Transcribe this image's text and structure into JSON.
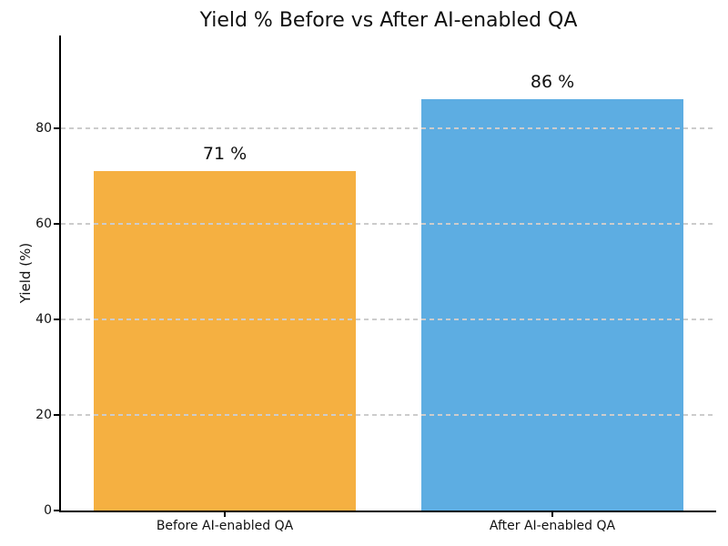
{
  "chart_data": {
    "type": "bar",
    "title": "Yield % Before vs After AI-enabled QA",
    "categories": [
      "Before AI-enabled QA",
      "After AI-enabled QA"
    ],
    "values": [
      71,
      86
    ],
    "value_labels": [
      "71 %",
      "86 %"
    ],
    "bar_colors": [
      "#F5B041",
      "#5DADE2"
    ],
    "xlabel": "",
    "ylabel": "Yield (%)",
    "ylim": [
      0,
      99.4
    ],
    "yticks": [
      0,
      20,
      40,
      60,
      80
    ],
    "bar_width_frac": 0.8,
    "grid": {
      "axis": "y",
      "style": "dashed",
      "color": "#cccccc",
      "drawn_over_bars": true
    },
    "background": "#ffffff",
    "text_color": "#111111",
    "axis_color": "#000000"
  }
}
